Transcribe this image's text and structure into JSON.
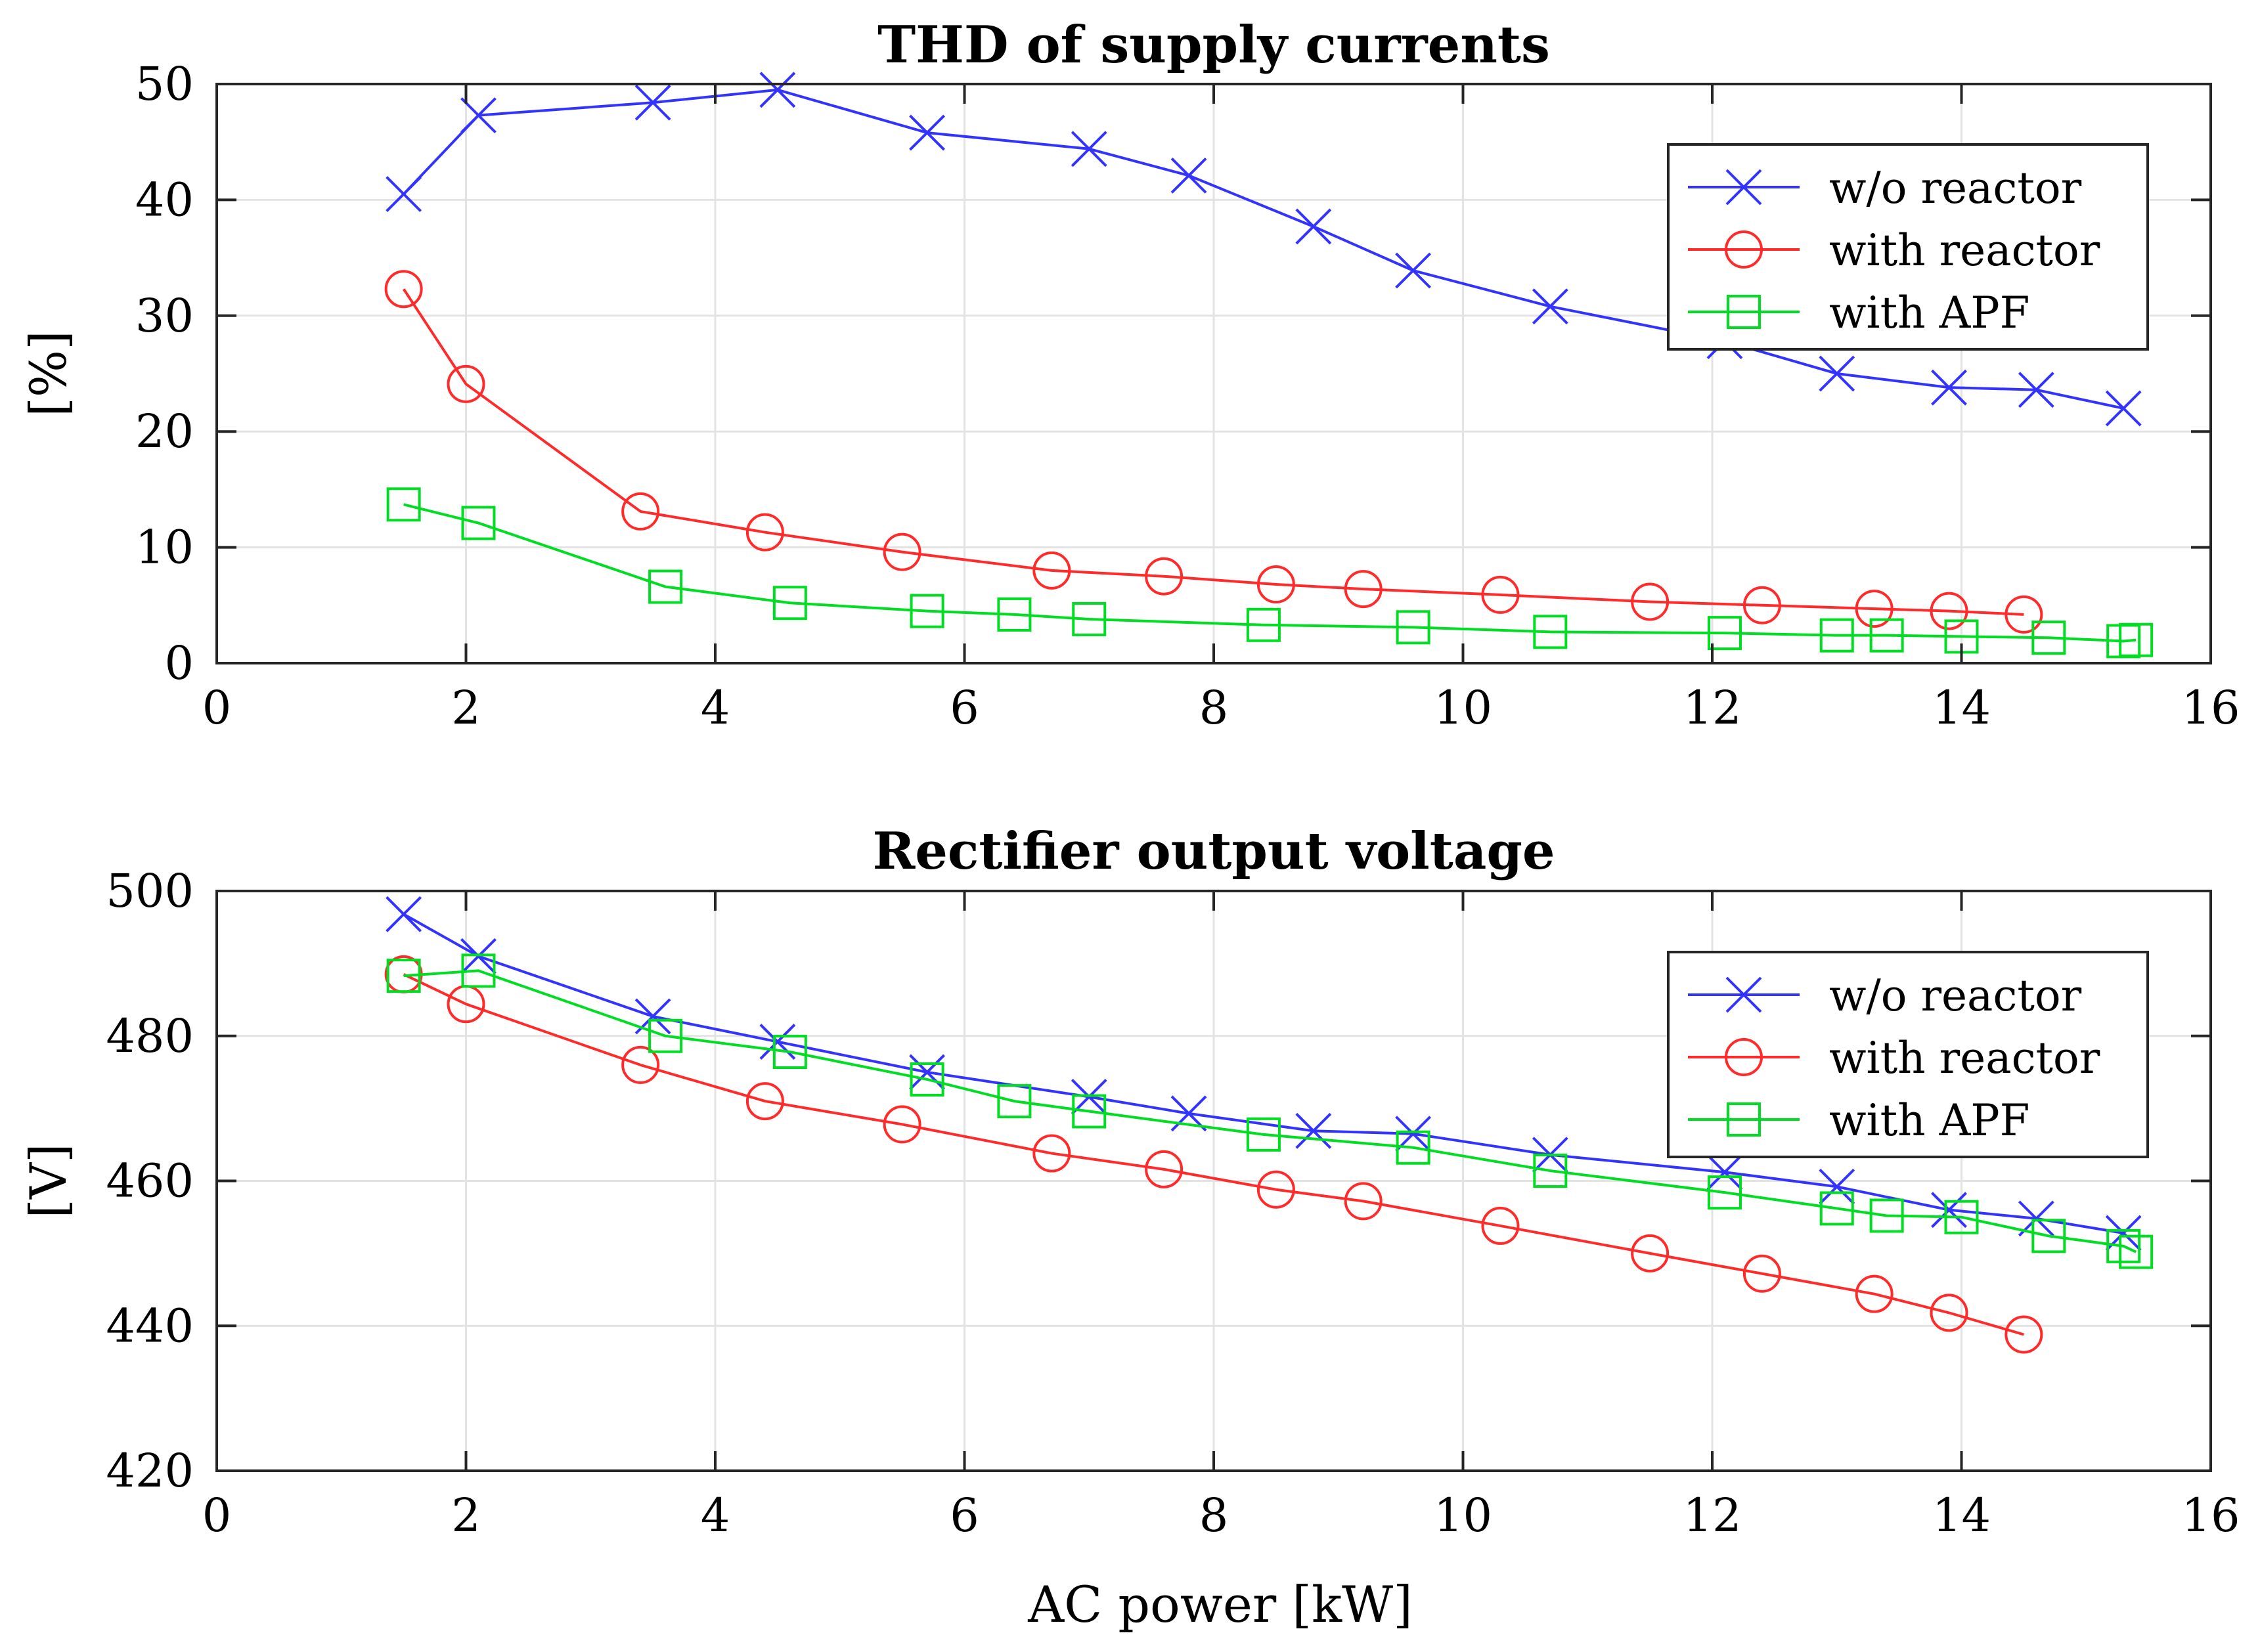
{
  "colors": {
    "wo_reactor": "#3333ff",
    "with_reactor": "#ff2a2a",
    "with_apf": "#00dd22"
  },
  "chart_data": [
    {
      "type": "line",
      "title": "THD of supply currents",
      "xlabel": "",
      "ylabel": "[%]",
      "xlim": [
        0,
        16
      ],
      "ylim": [
        0,
        50
      ],
      "xticks": [
        0,
        2,
        4,
        6,
        8,
        10,
        12,
        14,
        16
      ],
      "yticks": [
        0,
        10,
        20,
        30,
        40,
        50
      ],
      "xtick_labels": [
        "0",
        "2",
        "4",
        "6",
        "8",
        "10",
        "12",
        "14",
        "16"
      ],
      "ytick_labels": [
        "0",
        "10",
        "20",
        "30",
        "40",
        "50"
      ],
      "grid": true,
      "legend_position": "top-right",
      "series": [
        {
          "name": "w/o reactor",
          "marker": "x",
          "color": "#3333ff",
          "x": [
            1.5,
            2.1,
            3.5,
            4.5,
            5.7,
            7.0,
            7.8,
            8.8,
            9.6,
            10.7,
            12.1,
            13.0,
            13.9,
            14.6,
            15.3
          ],
          "y": [
            40.5,
            47.3,
            48.4,
            49.5,
            45.8,
            44.4,
            42.1,
            37.7,
            33.9,
            30.8,
            27.8,
            25.0,
            23.8,
            23.6,
            22.0
          ]
        },
        {
          "name": "with reactor",
          "marker": "o",
          "color": "#ff2a2a",
          "x": [
            1.5,
            2.0,
            3.4,
            4.4,
            5.5,
            6.7,
            7.6,
            8.5,
            9.2,
            10.3,
            11.5,
            12.4,
            13.3,
            13.9,
            14.5
          ],
          "y": [
            32.3,
            24.1,
            13.1,
            11.3,
            9.6,
            8.0,
            7.5,
            6.8,
            6.4,
            5.9,
            5.3,
            5.0,
            4.7,
            4.5,
            4.2
          ]
        },
        {
          "name": "with APF",
          "marker": "s",
          "color": "#00dd22",
          "x": [
            1.5,
            2.1,
            3.6,
            4.6,
            5.7,
            6.4,
            7.0,
            8.4,
            9.6,
            10.7,
            12.1,
            13.0,
            13.4,
            14.0,
            14.7,
            15.3,
            15.4
          ],
          "y": [
            13.7,
            12.1,
            6.6,
            5.2,
            4.5,
            4.2,
            3.8,
            3.3,
            3.1,
            2.7,
            2.6,
            2.4,
            2.4,
            2.3,
            2.2,
            1.9,
            2.0
          ]
        }
      ]
    },
    {
      "type": "line",
      "title": "Rectifier output voltage",
      "xlabel": "AC power [kW]",
      "ylabel": "[V]",
      "xlim": [
        0,
        16
      ],
      "ylim": [
        420,
        500
      ],
      "xticks": [
        0,
        2,
        4,
        6,
        8,
        10,
        12,
        14,
        16
      ],
      "yticks": [
        420,
        440,
        460,
        480,
        500
      ],
      "xtick_labels": [
        "0",
        "2",
        "4",
        "6",
        "8",
        "10",
        "12",
        "14",
        "16"
      ],
      "ytick_labels": [
        "420",
        "440",
        "460",
        "480",
        "500"
      ],
      "grid": true,
      "legend_position": "top-right",
      "series": [
        {
          "name": "w/o reactor",
          "marker": "x",
          "color": "#3333ff",
          "x": [
            1.5,
            2.1,
            3.5,
            4.5,
            5.7,
            7.0,
            7.8,
            8.8,
            9.6,
            10.7,
            12.1,
            13.0,
            13.9,
            14.6,
            15.3
          ],
          "y": [
            496.8,
            491.0,
            482.7,
            479.2,
            475.0,
            471.6,
            469.3,
            466.9,
            466.5,
            463.6,
            461.2,
            459.2,
            456.0,
            454.8,
            452.8
          ]
        },
        {
          "name": "with reactor",
          "marker": "o",
          "color": "#ff2a2a",
          "x": [
            1.5,
            2.0,
            3.4,
            4.4,
            5.5,
            6.7,
            7.6,
            8.5,
            9.2,
            10.3,
            11.5,
            12.4,
            13.3,
            13.9,
            14.5
          ],
          "y": [
            488.5,
            484.4,
            476.0,
            471.0,
            467.8,
            463.8,
            461.6,
            458.8,
            457.2,
            453.8,
            450.0,
            447.2,
            444.4,
            441.8,
            438.8
          ]
        },
        {
          "name": "with APF",
          "marker": "s",
          "color": "#00dd22",
          "x": [
            1.5,
            2.1,
            3.6,
            4.6,
            5.7,
            6.4,
            7.0,
            8.4,
            9.6,
            10.7,
            12.1,
            13.0,
            13.4,
            14.0,
            14.7,
            15.3,
            15.4
          ],
          "y": [
            488.3,
            489.0,
            480.0,
            477.8,
            474.0,
            471.0,
            469.6,
            466.4,
            464.6,
            461.4,
            458.4,
            456.2,
            455.2,
            455.0,
            452.4,
            451.0,
            450.2
          ]
        }
      ]
    }
  ]
}
